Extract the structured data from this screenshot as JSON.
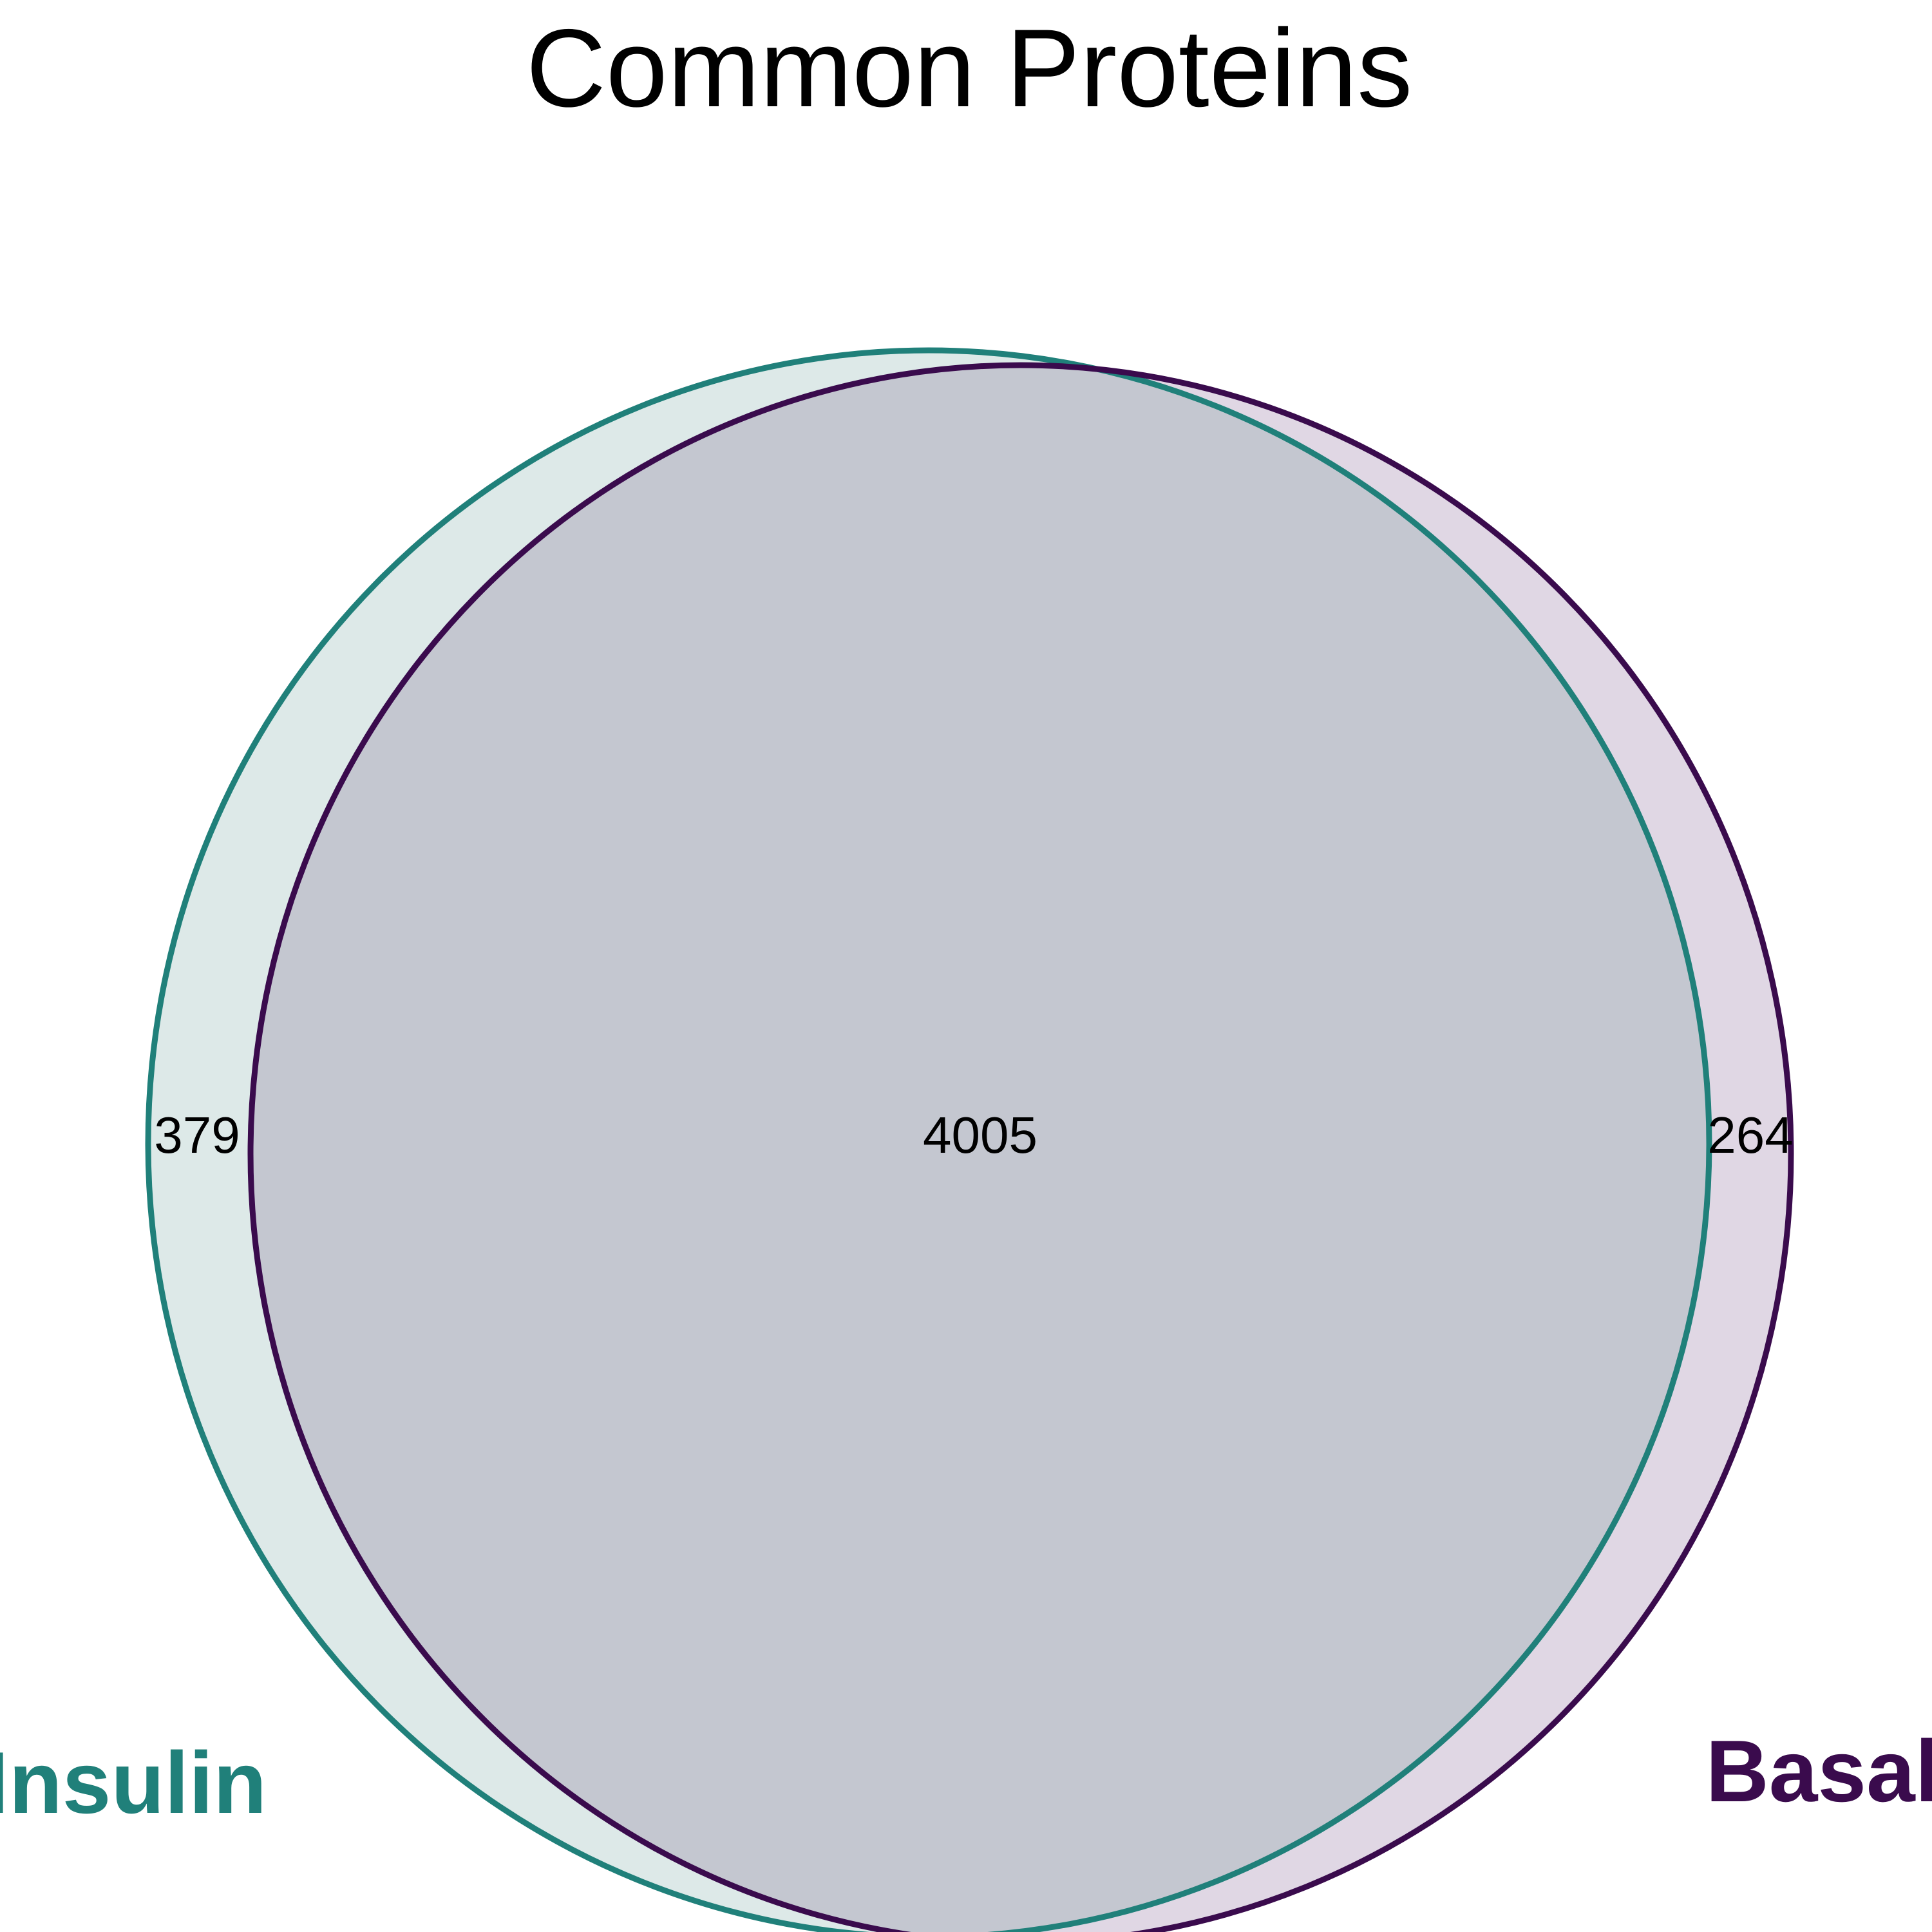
{
  "title": "Common Proteins",
  "sets": [
    {
      "name": "Insulin",
      "color": "#20807a",
      "fill": "#dde9e8"
    },
    {
      "name": "Basal",
      "color": "#3a0b4d",
      "fill": "#e0d7e4"
    }
  ],
  "regions": {
    "insulin_only": "379",
    "both": "4005",
    "basal_only": "264"
  },
  "overlap_fill": "#c4c7d0"
}
